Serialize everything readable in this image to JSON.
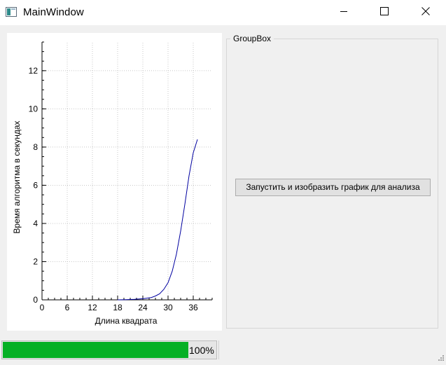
{
  "window": {
    "title": "MainWindow",
    "icons": {
      "app": "app-window-icon",
      "minimize": "minimize-icon",
      "maximize": "maximize-icon",
      "close": "close-icon"
    }
  },
  "chart_data": {
    "type": "line",
    "title": "",
    "xlabel": "Длина квадрата",
    "ylabel": "Время алгоритма в секундах",
    "xlim": [
      0,
      40.5
    ],
    "ylim": [
      0,
      13.5
    ],
    "xticks": [
      0,
      6,
      12,
      18,
      24,
      30,
      36
    ],
    "yticks": [
      0,
      2,
      4,
      6,
      8,
      10,
      12
    ],
    "grid": true,
    "line_color": "#0000a0",
    "series": [
      {
        "x": [
          18,
          20,
          22,
          24,
          26,
          27,
          28,
          29,
          30,
          31,
          32,
          33,
          34,
          35,
          36,
          37
        ],
        "y": [
          0.0,
          0.01,
          0.03,
          0.06,
          0.12,
          0.2,
          0.32,
          0.55,
          0.9,
          1.5,
          2.4,
          3.6,
          5.0,
          6.5,
          7.7,
          8.4
        ]
      }
    ]
  },
  "groupbox": {
    "title": "GroupBox",
    "run_button_label": "Запустить и изобразить график для анализа"
  },
  "statusbar": {
    "progress_percent": 100,
    "progress_text": "100%",
    "progress_color": "#06b025"
  }
}
